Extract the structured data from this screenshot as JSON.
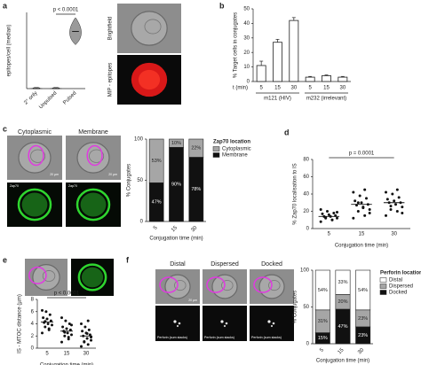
{
  "panels": {
    "labels": [
      "a",
      "b",
      "c",
      "d",
      "e",
      "f"
    ]
  },
  "images_a": {
    "rows": [
      "Brightfield",
      "MIP - epitopes"
    ]
  },
  "images_c": {
    "columns": [
      "Cytoplasmic",
      "Membrane"
    ],
    "channel": "Zap70",
    "scale": "20 µm"
  },
  "images_f": {
    "columns": [
      "Distal",
      "Dispersed",
      "Docked"
    ],
    "caption": "Perforin (sum stacks)",
    "scale": "20 µm"
  },
  "chart_data": [
    {
      "type": "violin",
      "ylabel": "epitopes/cell (median)",
      "categories": [
        "2° only",
        "Unpulsed",
        "Pulsed"
      ],
      "values": [
        0,
        0,
        300
      ],
      "ranges": [
        [
          0,
          3
        ],
        [
          0,
          3
        ],
        [
          230,
          370
        ]
      ],
      "ylim": [
        0,
        400
      ],
      "annotation": "p < 0.0001",
      "color": "#9a9a9a"
    },
    {
      "type": "bar",
      "ylabel": "% Target cells in conjugates",
      "xlabel": "t (min)",
      "categories": [
        "5",
        "15",
        "30",
        "5",
        "15",
        "30"
      ],
      "groups": [
        "m121 (HIV)",
        "m232 (irrelevant)"
      ],
      "values": [
        11,
        27,
        42,
        3,
        4,
        3
      ],
      "errors": [
        3,
        2,
        2,
        0.5,
        0.5,
        0.5
      ],
      "ylim": [
        0,
        50
      ],
      "yticks": [
        0,
        10,
        20,
        30,
        40,
        50
      ],
      "color": "#ffffff"
    },
    {
      "type": "stacked_bar",
      "ylabel": "% Conjugates",
      "xlabel": "Conjugation time (min)",
      "legend_title": "Zap70 location",
      "categories": [
        "5",
        "15",
        "30"
      ],
      "ylim": [
        0,
        100
      ],
      "yticks": [
        0,
        50,
        100
      ],
      "series": [
        {
          "name": "Membrane",
          "color": "#111111",
          "values": [
            47,
            90,
            78
          ],
          "value_labels": [
            "47%",
            "90%",
            "78%"
          ]
        },
        {
          "name": "Cytoplasmic",
          "color": "#a6a6a6",
          "values": [
            53,
            10,
            22
          ],
          "value_labels": [
            "53%",
            "10%",
            "22%"
          ]
        }
      ]
    },
    {
      "type": "dot_plot",
      "ylabel": "% Zap70 localisation to IS",
      "xlabel": "Conjugation time (min)",
      "categories": [
        "5",
        "15",
        "30"
      ],
      "annotation": "p = 0.0001",
      "ylim": [
        0,
        80
      ],
      "yticks": [
        0,
        20,
        40,
        60,
        80
      ],
      "values": [
        [
          8,
          10,
          12,
          12,
          14,
          14,
          15,
          16,
          17,
          18,
          20,
          22,
          10,
          13,
          19
        ],
        [
          12,
          15,
          20,
          22,
          25,
          27,
          28,
          30,
          32,
          35,
          38,
          42,
          45,
          30,
          18,
          24
        ],
        [
          15,
          20,
          22,
          25,
          28,
          30,
          30,
          32,
          34,
          36,
          40,
          42,
          45,
          26,
          18
        ]
      ],
      "medians": [
        14,
        28,
        30
      ]
    },
    {
      "type": "dot_plot",
      "ylabel": "IS - MTOC distance (µm)",
      "xlabel": "Conjugation time (min)",
      "categories": [
        "5",
        "15",
        "30"
      ],
      "annotation": "p < 0.0001",
      "ylim": [
        0,
        8
      ],
      "yticks": [
        0,
        2,
        4,
        6,
        8
      ],
      "values": [
        [
          2.5,
          3,
          3.5,
          3.8,
          4,
          4.2,
          4.5,
          4.8,
          5,
          5.5,
          6,
          6.2,
          3.2,
          4.4
        ],
        [
          1,
          1.5,
          2,
          2.2,
          2.5,
          2.8,
          3,
          3.2,
          3.5,
          4,
          4.5,
          5,
          1.8,
          2.6,
          3.8
        ],
        [
          0.3,
          0.6,
          1,
          1.3,
          1.6,
          2,
          2.2,
          2.5,
          2.8,
          3,
          3.5,
          4,
          4.5,
          1.1,
          1.8,
          2.4
        ]
      ],
      "medians": [
        4.3,
        2.8,
        2.0
      ]
    },
    {
      "type": "stacked_bar",
      "ylabel": "% Conjugates",
      "xlabel": "Conjugation time (min)",
      "legend_title": "Perforin location",
      "categories": [
        "5",
        "15",
        "30"
      ],
      "ylim": [
        0,
        100
      ],
      "yticks": [
        0,
        50,
        100
      ],
      "series": [
        {
          "name": "Docked",
          "color": "#111111",
          "values": [
            15,
            47,
            23
          ],
          "value_labels": [
            "15%",
            "47%",
            "23%"
          ]
        },
        {
          "name": "Dispersed",
          "color": "#a6a6a6",
          "values": [
            31,
            20,
            23
          ],
          "value_labels": [
            "31%",
            "20%",
            "23%"
          ]
        },
        {
          "name": "Distal",
          "color": "#ffffff",
          "values": [
            54,
            33,
            54
          ],
          "value_labels": [
            "54%",
            "33%",
            "54%"
          ]
        }
      ]
    }
  ]
}
